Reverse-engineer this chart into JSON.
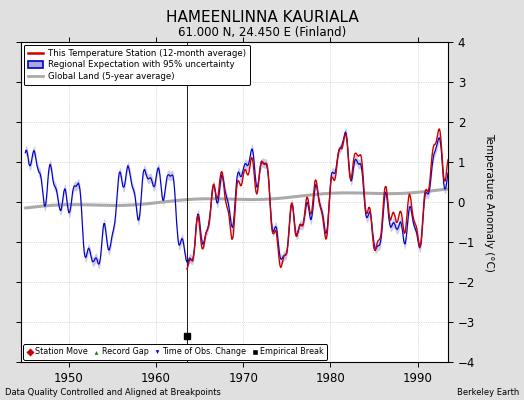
{
  "title": "HAMEENLINNA KAURIALA",
  "subtitle": "61.000 N, 24.450 E (Finland)",
  "ylabel": "Temperature Anomaly (°C)",
  "xlim": [
    1944.5,
    1993.5
  ],
  "ylim": [
    -4,
    4
  ],
  "yticks": [
    -4,
    -3,
    -2,
    -1,
    0,
    1,
    2,
    3,
    4
  ],
  "xticks": [
    1950,
    1960,
    1970,
    1980,
    1990
  ],
  "footer_left": "Data Quality Controlled and Aligned at Breakpoints",
  "footer_right": "Berkeley Earth",
  "empirical_break_x": 1963.5,
  "empirical_break_y": -3.35,
  "background_color": "#e0e0e0",
  "plot_bg_color": "#ffffff",
  "red_color": "#cc0000",
  "blue_color": "#0000cc",
  "blue_fill_color": "#aaaadd",
  "gray_color": "#aaaaaa",
  "red_start_year": 1963.5,
  "seed": 42
}
